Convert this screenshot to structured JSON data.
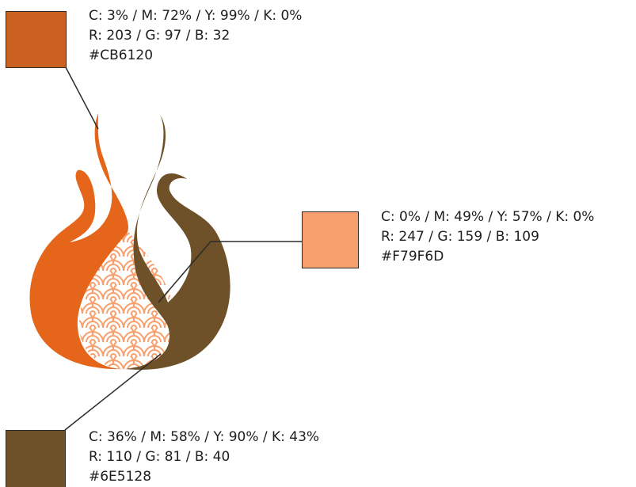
{
  "swatches": [
    {
      "color": "#CB6120",
      "cmyk": "C: 3% / M: 72% / Y: 99% / K: 0%",
      "rgb": "R: 203 / G: 97 / B: 32",
      "hex": "#CB6120"
    },
    {
      "color": "#F79F6D",
      "cmyk": "C: 0% / M: 49% /  Y: 57% / K: 0%",
      "rgb": "R: 247 / G: 159 / B: 109",
      "hex": "#F79F6D"
    },
    {
      "color": "#6E5128",
      "cmyk": "C: 36% / M: 58% / Y: 90% / K: 43%",
      "rgb": "R: 110 / G: 81 / B: 40",
      "hex": "#6E5128"
    }
  ],
  "flame_colors": {
    "left_flame": "#E5661A",
    "right_flame": "#6E5128",
    "inner_fill": "#FFFFFF",
    "inner_pattern": "#F79F6D"
  },
  "icon": "flame-logo"
}
